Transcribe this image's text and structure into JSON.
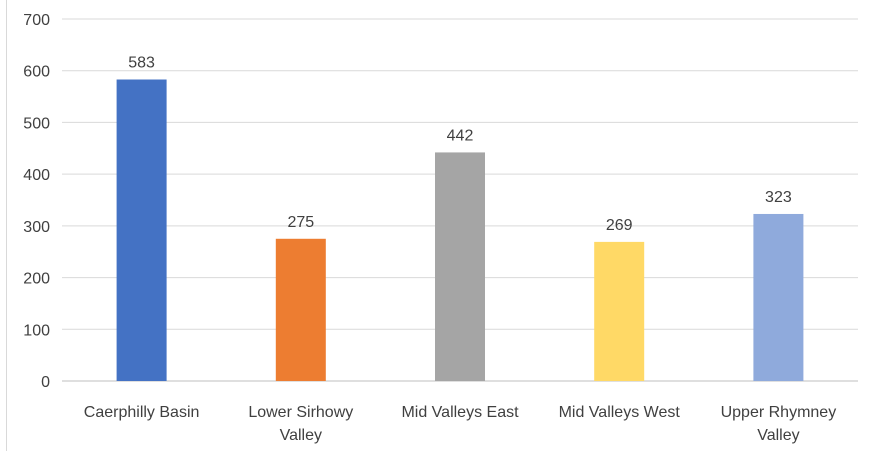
{
  "chart_data": {
    "type": "bar",
    "title": "",
    "xlabel": "",
    "ylabel": "",
    "categories": [
      [
        "Caerphilly Basin"
      ],
      [
        "Lower Sirhowy",
        "Valley"
      ],
      [
        "Mid Valleys East"
      ],
      [
        "Mid Valleys West"
      ],
      [
        "Upper Rhymney",
        "Valley"
      ]
    ],
    "values": [
      583,
      275,
      442,
      269,
      323
    ],
    "data_labels": [
      "583",
      "275",
      "442",
      "269",
      "323"
    ],
    "colors": [
      "#4472C4",
      "#ED7D31",
      "#A5A5A5",
      "#FFD966",
      "#8FAADC"
    ],
    "ylim": [
      0,
      700
    ],
    "yticks": [
      0,
      100,
      200,
      300,
      400,
      500,
      600,
      700
    ],
    "ytick_labels": [
      "0",
      "100",
      "200",
      "300",
      "400",
      "500",
      "600",
      "700"
    ],
    "grid": true,
    "legend": "none"
  }
}
